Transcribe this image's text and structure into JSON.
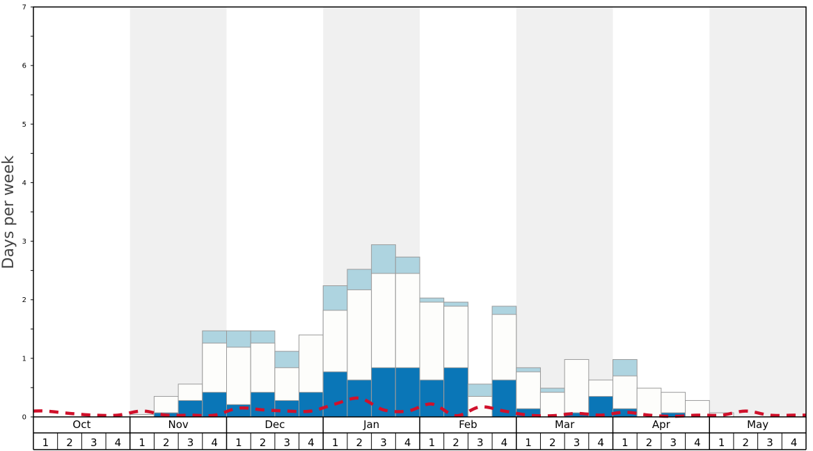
{
  "chart_data": {
    "type": "bar",
    "ylabel": "Days per week",
    "ylim": [
      0,
      7
    ],
    "y_major_ticks": [
      "0",
      "1",
      "2",
      "3",
      "4",
      "5",
      "6",
      "7"
    ],
    "months": [
      "Oct",
      "Nov",
      "Dec",
      "Jan",
      "Feb",
      "Mar",
      "Apr",
      "May"
    ],
    "week_labels": [
      "1",
      "2",
      "3",
      "4"
    ],
    "colors": {
      "shade": "#f0f0f0",
      "dark_segment": "#0a76b7",
      "white_segment": "#fdfdfb",
      "light_segment": "#aed4e0",
      "bar_edge": "#9a9a9a",
      "line": "#d0112b"
    },
    "series": [
      {
        "values": [
          0,
          0,
          0,
          0,
          0,
          0.07,
          0.28,
          0.42,
          0.21,
          0.42,
          0.28,
          0.42,
          0.77,
          0.63,
          0.84,
          0.84,
          0.63,
          0.84,
          0,
          0.63,
          0.14,
          0,
          0.07,
          0.35,
          0.14,
          0,
          0.07,
          0,
          0,
          0,
          0,
          0
        ]
      },
      {
        "values": [
          0,
          0,
          0,
          0,
          0.04,
          0.35,
          0.56,
          1.26,
          1.19,
          1.26,
          0.84,
          1.4,
          1.82,
          2.17,
          2.45,
          2.45,
          1.96,
          1.89,
          0.35,
          1.75,
          0.77,
          0.42,
          0.98,
          0.63,
          0.7,
          0.49,
          0.42,
          0.28,
          0.07,
          0,
          0,
          0
        ]
      },
      {
        "values": [
          0,
          0,
          0,
          0,
          0,
          0,
          0,
          1.47,
          1.47,
          1.47,
          1.12,
          0,
          2.24,
          2.52,
          2.94,
          2.73,
          2.03,
          1.96,
          0.56,
          1.89,
          0.84,
          0.49,
          0,
          0,
          0.98,
          0,
          0,
          0,
          0,
          0,
          0,
          0
        ]
      },
      {
        "values": [
          0.1,
          0.06,
          0.03,
          0.03,
          0.1,
          0.03,
          0.03,
          0.03,
          0.15,
          0.12,
          0.1,
          0.1,
          0.22,
          0.32,
          0.12,
          0.1,
          0.22,
          0.02,
          0.17,
          0.1,
          0.03,
          0.02,
          0.06,
          0.03,
          0.08,
          0.03,
          0.01,
          0.03,
          0.03,
          0.1,
          0.03,
          0.03
        ]
      }
    ]
  }
}
